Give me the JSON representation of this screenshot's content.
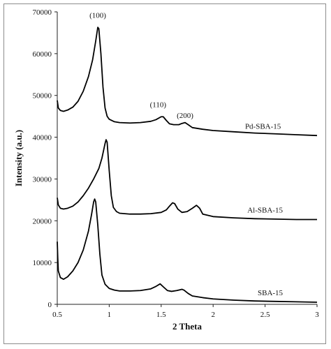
{
  "chart_data": {
    "type": "line",
    "title": "",
    "xlabel": "2 Theta",
    "ylabel": "Intensity (a.u.)",
    "xlim": [
      0.5,
      3
    ],
    "ylim": [
      0,
      70000
    ],
    "x_ticks": [
      "0.5",
      "1",
      "1.5",
      "2",
      "2.5",
      "3"
    ],
    "y_ticks": [
      "0",
      "10000",
      "20000",
      "30000",
      "40000",
      "50000",
      "60000",
      "70000"
    ],
    "grid": false,
    "legend": "none",
    "series": [
      {
        "name": "Pd-SBA-15",
        "color": "#000000",
        "points": [
          [
            0.5,
            48800
          ],
          [
            0.51,
            47000
          ],
          [
            0.53,
            46400
          ],
          [
            0.56,
            46200
          ],
          [
            0.6,
            46500
          ],
          [
            0.65,
            47200
          ],
          [
            0.7,
            48600
          ],
          [
            0.75,
            51000
          ],
          [
            0.8,
            54500
          ],
          [
            0.84,
            58500
          ],
          [
            0.87,
            63000
          ],
          [
            0.89,
            66300
          ],
          [
            0.9,
            66000
          ],
          [
            0.92,
            60000
          ],
          [
            0.94,
            52000
          ],
          [
            0.96,
            47000
          ],
          [
            0.98,
            45000
          ],
          [
            1.0,
            44300
          ],
          [
            1.05,
            43700
          ],
          [
            1.1,
            43500
          ],
          [
            1.2,
            43400
          ],
          [
            1.3,
            43500
          ],
          [
            1.4,
            43800
          ],
          [
            1.45,
            44200
          ],
          [
            1.5,
            44900
          ],
          [
            1.52,
            44900
          ],
          [
            1.55,
            44000
          ],
          [
            1.58,
            43200
          ],
          [
            1.62,
            43000
          ],
          [
            1.67,
            43000
          ],
          [
            1.7,
            43300
          ],
          [
            1.73,
            43500
          ],
          [
            1.76,
            43000
          ],
          [
            1.8,
            42300
          ],
          [
            1.9,
            41900
          ],
          [
            2.0,
            41600
          ],
          [
            2.2,
            41300
          ],
          [
            2.4,
            41000
          ],
          [
            2.6,
            40800
          ],
          [
            2.8,
            40600
          ],
          [
            3.0,
            40400
          ]
        ]
      },
      {
        "name": "Al-SBA-15",
        "color": "#000000",
        "points": [
          [
            0.5,
            25500
          ],
          [
            0.51,
            23800
          ],
          [
            0.53,
            23000
          ],
          [
            0.56,
            22800
          ],
          [
            0.6,
            23000
          ],
          [
            0.65,
            23500
          ],
          [
            0.7,
            24500
          ],
          [
            0.75,
            26000
          ],
          [
            0.8,
            27800
          ],
          [
            0.85,
            30000
          ],
          [
            0.9,
            32500
          ],
          [
            0.93,
            35000
          ],
          [
            0.96,
            38500
          ],
          [
            0.97,
            39400
          ],
          [
            0.98,
            38800
          ],
          [
            1.0,
            32000
          ],
          [
            1.02,
            26000
          ],
          [
            1.04,
            23200
          ],
          [
            1.07,
            22200
          ],
          [
            1.1,
            21800
          ],
          [
            1.2,
            21600
          ],
          [
            1.3,
            21600
          ],
          [
            1.4,
            21700
          ],
          [
            1.5,
            22000
          ],
          [
            1.55,
            22600
          ],
          [
            1.58,
            23500
          ],
          [
            1.61,
            24300
          ],
          [
            1.63,
            24100
          ],
          [
            1.66,
            22800
          ],
          [
            1.7,
            22000
          ],
          [
            1.75,
            22200
          ],
          [
            1.8,
            23000
          ],
          [
            1.84,
            23700
          ],
          [
            1.87,
            23000
          ],
          [
            1.9,
            21600
          ],
          [
            2.0,
            21000
          ],
          [
            2.2,
            20700
          ],
          [
            2.4,
            20500
          ],
          [
            2.6,
            20400
          ],
          [
            2.8,
            20300
          ],
          [
            3.0,
            20300
          ]
        ]
      },
      {
        "name": "SBA-15",
        "color": "#000000",
        "points": [
          [
            0.5,
            15000
          ],
          [
            0.505,
            11000
          ],
          [
            0.51,
            8000
          ],
          [
            0.53,
            6400
          ],
          [
            0.56,
            6000
          ],
          [
            0.6,
            6600
          ],
          [
            0.65,
            8000
          ],
          [
            0.7,
            10000
          ],
          [
            0.75,
            13000
          ],
          [
            0.8,
            17500
          ],
          [
            0.83,
            21500
          ],
          [
            0.85,
            24500
          ],
          [
            0.86,
            25200
          ],
          [
            0.87,
            24500
          ],
          [
            0.89,
            19000
          ],
          [
            0.91,
            12000
          ],
          [
            0.93,
            7000
          ],
          [
            0.96,
            4800
          ],
          [
            1.0,
            3800
          ],
          [
            1.05,
            3400
          ],
          [
            1.1,
            3200
          ],
          [
            1.2,
            3200
          ],
          [
            1.3,
            3300
          ],
          [
            1.4,
            3700
          ],
          [
            1.45,
            4300
          ],
          [
            1.49,
            4900
          ],
          [
            1.52,
            4200
          ],
          [
            1.56,
            3300
          ],
          [
            1.6,
            3100
          ],
          [
            1.65,
            3300
          ],
          [
            1.7,
            3600
          ],
          [
            1.72,
            3400
          ],
          [
            1.76,
            2600
          ],
          [
            1.8,
            2000
          ],
          [
            1.9,
            1600
          ],
          [
            2.0,
            1300
          ],
          [
            2.2,
            1000
          ],
          [
            2.4,
            800
          ],
          [
            2.6,
            700
          ],
          [
            2.8,
            600
          ],
          [
            3.0,
            500
          ]
        ]
      }
    ],
    "annotations": [
      {
        "text": "(100)",
        "x": 0.89,
        "y": 68600
      },
      {
        "text": "(110)",
        "x": 1.47,
        "y": 47200
      },
      {
        "text": "(200)",
        "x": 1.73,
        "y": 44600
      },
      {
        "text": "Pd-SBA-15",
        "x": 2.48,
        "y": 42000
      },
      {
        "text": "Al-SBA-15",
        "x": 2.5,
        "y": 22000
      },
      {
        "text": "SBA-15",
        "x": 2.55,
        "y": 2200
      }
    ]
  }
}
